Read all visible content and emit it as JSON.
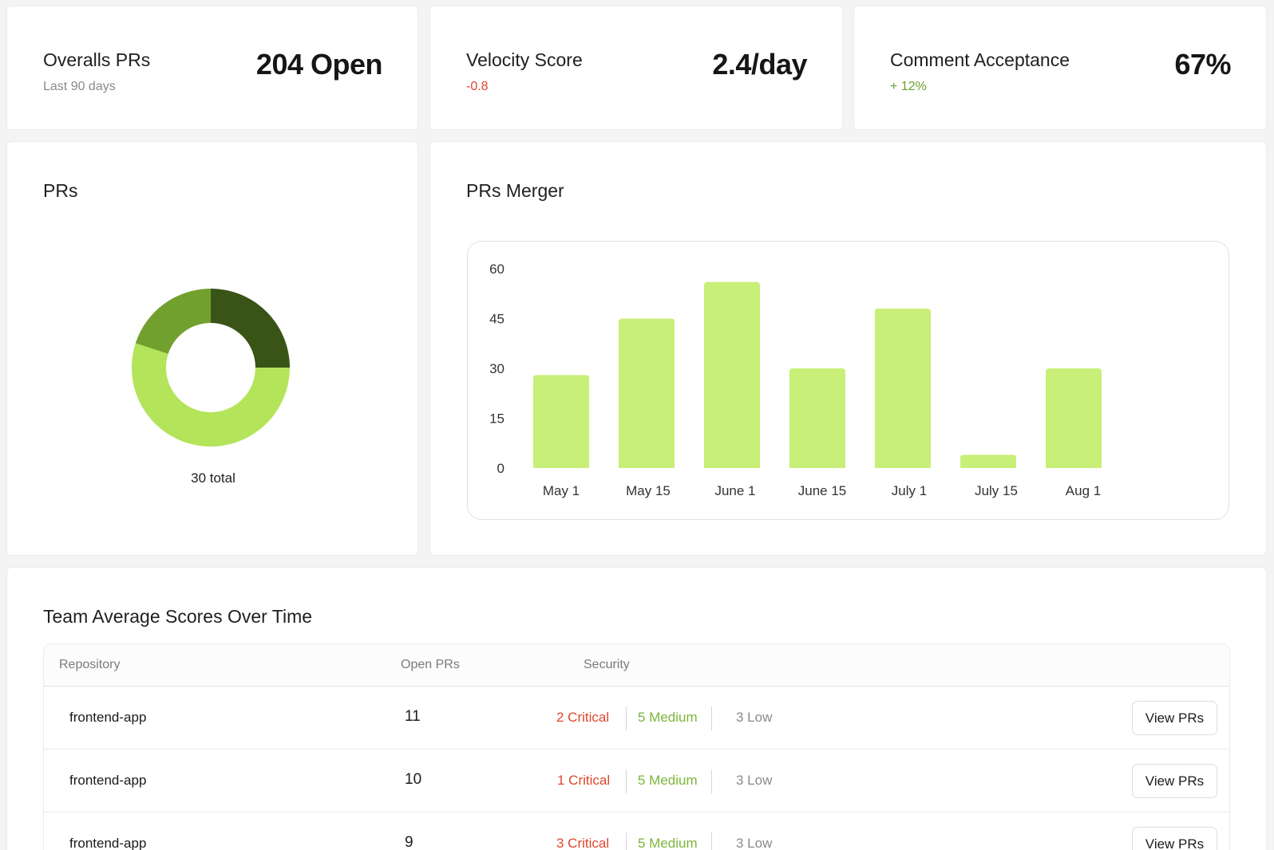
{
  "kpis": [
    {
      "label": "Overalls PRs",
      "sub": "Last 90 days",
      "value": "204 Open"
    },
    {
      "label": "Velocity Score",
      "sub": "-0.8",
      "value": "2.4/day"
    },
    {
      "label": "Comment Acceptance",
      "sub": "+ 12%",
      "value": "67%"
    }
  ],
  "donut": {
    "title": "PRs",
    "caption": "30 total",
    "colors": [
      "#3a5418",
      "#b4e45a",
      "#72a02e"
    ],
    "chart_data": {
      "type": "pie",
      "title": "PRs",
      "values": [
        0.25,
        0.55,
        0.2
      ],
      "colors": [
        "#3a5418",
        "#b4e45a",
        "#72a02e"
      ]
    }
  },
  "bars": {
    "title": "PRs Merger",
    "color": "#c8ef78",
    "chart_data": {
      "type": "bar",
      "categories": [
        "May 1",
        "May 15",
        "June 1",
        "June 15",
        "July 1",
        "July 15",
        "Aug 1"
      ],
      "values": [
        28,
        45,
        56,
        30,
        48,
        4,
        30
      ],
      "yticks": [
        0,
        15,
        30,
        45,
        60
      ],
      "ylim": [
        0,
        60
      ],
      "grid": false
    }
  },
  "table": {
    "title": "Team Average Scores Over Time",
    "headers": {
      "repository": "Repository",
      "open": "Open PRs",
      "security": "Security"
    },
    "rows": [
      {
        "repo": "frontend-app",
        "open": "11",
        "critical": "2 Critical",
        "medium": "5 Medium",
        "low": "3 Low",
        "action": "View PRs"
      },
      {
        "repo": "frontend-app",
        "open": "10",
        "critical": "1 Critical",
        "medium": "5 Medium",
        "low": "3 Low",
        "action": "View PRs"
      },
      {
        "repo": "frontend-app",
        "open": "9",
        "critical": "3 Critical",
        "medium": "5 Medium",
        "low": "3 Low",
        "action": "View PRs"
      }
    ]
  }
}
